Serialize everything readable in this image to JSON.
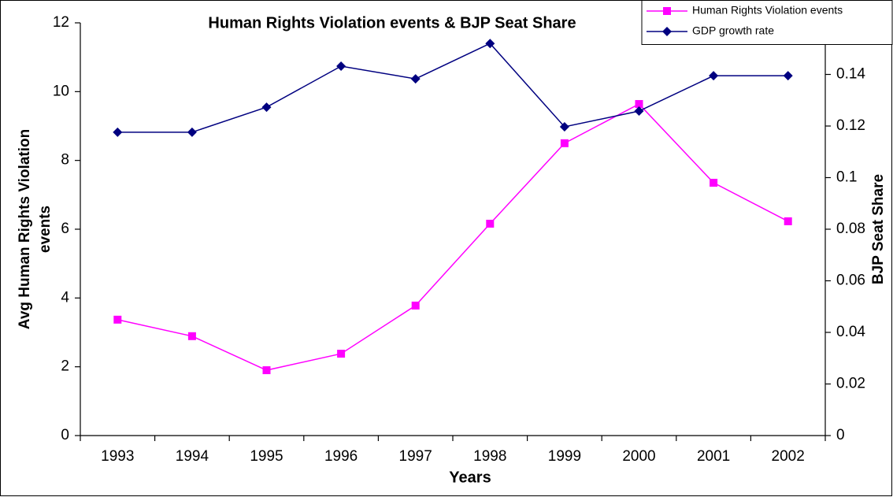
{
  "chart_data": {
    "type": "line",
    "title": "Human Rights Violation events & BJP Seat Share",
    "x_label": "Years",
    "y_label": [
      "Avg Human Rights Violation",
      "events"
    ],
    "y2_label": "BJP Seat Share",
    "categories": [
      "1993",
      "1994",
      "1995",
      "1996",
      "1997",
      "1998",
      "1999",
      "2000",
      "2001",
      "2002"
    ],
    "series": [
      {
        "name": "Human Rights Violation events",
        "color": "#ff00ff",
        "marker": "square",
        "values": [
          3.37,
          2.89,
          1.9,
          2.38,
          3.78,
          6.16,
          8.5,
          9.64,
          7.35,
          6.23
        ]
      },
      {
        "name": "GDP growth rate",
        "color": "#000080",
        "marker": "diamond",
        "axis": "y2",
        "values": [
          0.1176,
          0.1176,
          0.1273,
          0.1432,
          0.1383,
          0.152,
          0.1197,
          0.1258,
          0.1395,
          0.1395
        ]
      }
    ],
    "ylim": [
      0,
      12
    ],
    "yticks": [
      0,
      2,
      4,
      6,
      8,
      10,
      12
    ],
    "y2lim": [
      0,
      0.16
    ],
    "y2ticks": [
      0,
      0.02,
      0.04,
      0.06,
      0.08,
      0.1,
      0.12,
      0.14
    ],
    "legend": "top-right"
  }
}
